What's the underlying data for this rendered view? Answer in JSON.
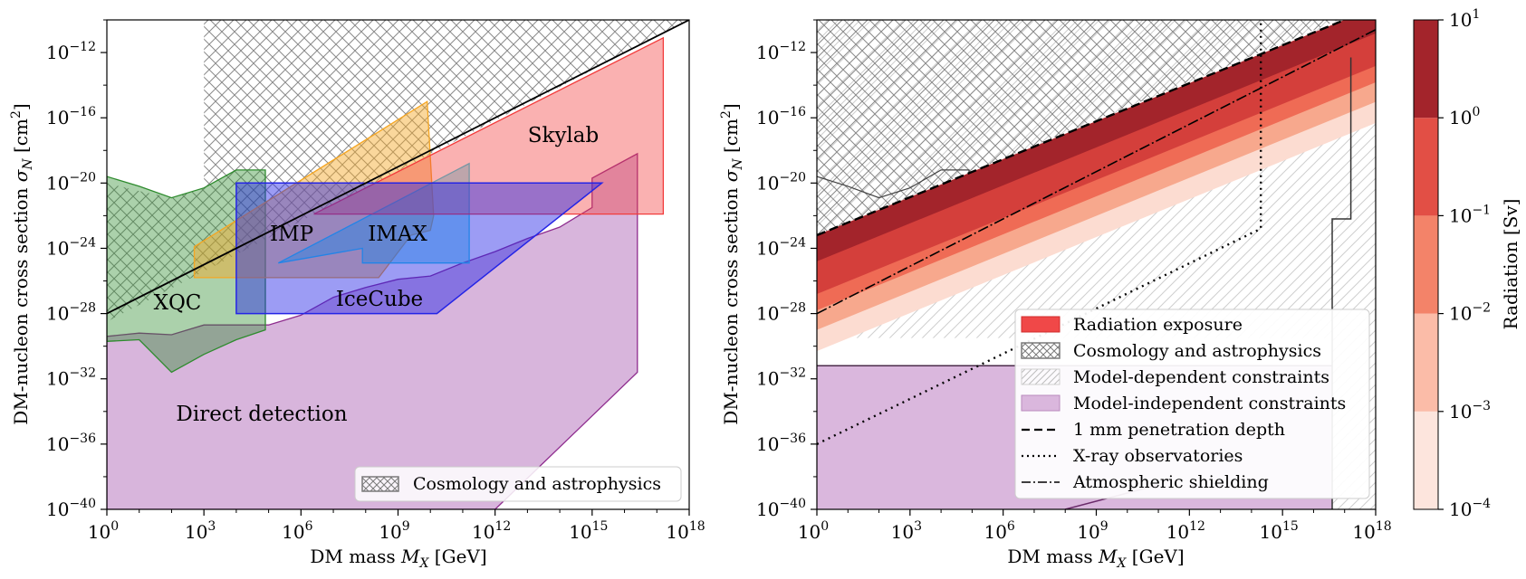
{
  "colors": {
    "cosmo_hatch": "#7a7a7a",
    "direct": "#b879c0",
    "xqc": "#2e8b2e",
    "imp": "#f5a623",
    "imax": "#22d3e8",
    "skylab": "#f23b3b",
    "icecube": "#2424e6",
    "dark_red": "#a3242b",
    "sky_red": "#f04848"
  },
  "chart_data": [
    {
      "type": "area",
      "xlabel": "DM mass M_X [GeV]",
      "ylabel": "DM-nucleon cross section σ_N [cm²]",
      "xscale": "log10",
      "yscale": "log10",
      "xlim": [
        0,
        18
      ],
      "ylim": [
        -40,
        -10
      ],
      "x_ticks": [
        0,
        3,
        6,
        9,
        12,
        15,
        18
      ],
      "y_ticks": [
        -40,
        -36,
        -32,
        -28,
        -24,
        -20,
        -16,
        -12
      ],
      "grid": false,
      "legend": {
        "position": "bottom-right",
        "entries": [
          "Cosmology and astrophysics"
        ]
      },
      "labels": [
        "Skylab",
        "IMP",
        "IMAX",
        "XQC",
        "IceCube",
        "Direct detection"
      ],
      "regions": [
        {
          "id": "cosmology",
          "hatch": true,
          "points": [
            [
              0,
              -10
            ],
            [
              18,
              -10
            ],
            [
              0,
              -28.5
            ],
            [
              0,
              -20
            ],
            [
              1,
              -20.5
            ],
            [
              2,
              -20.9
            ],
            [
              3,
              -20.3
            ],
            [
              3,
              -10
            ]
          ]
        },
        {
          "id": "direct_detection",
          "points": [
            [
              0,
              -40
            ],
            [
              0,
              -29.4
            ],
            [
              1,
              -29.2
            ],
            [
              2,
              -29.3
            ],
            [
              3,
              -28.7
            ],
            [
              4,
              -28.7
            ],
            [
              5,
              -28.7
            ],
            [
              6,
              -28.1
            ],
            [
              7,
              -27.0
            ],
            [
              8,
              -26.4
            ],
            [
              9,
              -25.9
            ],
            [
              10,
              -25.7
            ],
            [
              11,
              -24.9
            ],
            [
              12,
              -24.2
            ],
            [
              13,
              -23.4
            ],
            [
              14,
              -22.7
            ],
            [
              15,
              -21.5
            ],
            [
              15,
              -19.7
            ],
            [
              16.4,
              -18.2
            ],
            [
              16.4,
              -31.6
            ],
            [
              12,
              -40
            ]
          ]
        },
        {
          "id": "xqc",
          "points": [
            [
              0,
              -19.6
            ],
            [
              1,
              -20.2
            ],
            [
              2,
              -20.9
            ],
            [
              3,
              -20.3
            ],
            [
              4,
              -19.2
            ],
            [
              4.9,
              -19.2
            ],
            [
              4.9,
              -29.0
            ],
            [
              4,
              -29.6
            ],
            [
              3,
              -30.5
            ],
            [
              2,
              -31.6
            ],
            [
              1,
              -29.6
            ],
            [
              0,
              -29.7
            ]
          ]
        },
        {
          "id": "imp",
          "points": [
            [
              2.7,
              -23.9
            ],
            [
              9.9,
              -15.0
            ],
            [
              10.1,
              -22.0
            ],
            [
              10.0,
              -22.9
            ],
            [
              9.4,
              -23.2
            ],
            [
              8.4,
              -25.8
            ],
            [
              2.7,
              -25.8
            ]
          ]
        },
        {
          "id": "imax",
          "points": [
            [
              5.3,
              -24.9
            ],
            [
              11.2,
              -18.8
            ],
            [
              11.2,
              -24.9
            ],
            [
              7.9,
              -24.9
            ],
            [
              7.9,
              -24.0
            ]
          ]
        },
        {
          "id": "skylab",
          "points": [
            [
              6.4,
              -21.9
            ],
            [
              17.2,
              -11.1
            ],
            [
              17.2,
              -21.9
            ]
          ]
        },
        {
          "id": "icecube",
          "points": [
            [
              4,
              -20.0
            ],
            [
              15.3,
              -20.0
            ],
            [
              10.2,
              -28.0
            ],
            [
              4,
              -28.0
            ]
          ]
        },
        {
          "id": "black_line",
          "points": [
            [
              0,
              -28.0
            ],
            [
              18,
              -10
            ]
          ]
        }
      ]
    },
    {
      "type": "area",
      "xlabel": "DM mass M_X [GeV]",
      "ylabel": "DM-nucleon cross section σ_N [cm²]",
      "xscale": "log10",
      "yscale": "log10",
      "xlim": [
        0,
        18
      ],
      "ylim": [
        -40,
        -10
      ],
      "x_ticks": [
        0,
        3,
        6,
        9,
        12,
        15,
        18
      ],
      "y_ticks": [
        -40,
        -36,
        -32,
        -28,
        -24,
        -20,
        -16,
        -12
      ],
      "grid": false,
      "legend": {
        "position": "lower-right",
        "entries": [
          "Radiation exposure",
          "Cosmology and astrophysics",
          "Model-dependent constraints",
          "Model-independent constraints",
          "1 mm penetration depth",
          "X-ray observatories",
          "Atmospheric shielding"
        ]
      },
      "radiation_bands_Sv": [
        {
          "level": "1e1",
          "offset": 0,
          "color": "#a3242b"
        },
        {
          "level": "1e0",
          "offset": -2.0,
          "color": "#d43f3b"
        },
        {
          "level": "1e-1",
          "offset": -3.0,
          "color": "#ef6b55"
        },
        {
          "level": "1e-2",
          "offset": -4.2,
          "color": "#f7a88d"
        },
        {
          "level": "1e-3",
          "offset": -5.5,
          "color": "#fcdcd1"
        }
      ],
      "lines": {
        "penetration_1mm": [
          [
            0,
            -23.2
          ],
          [
            17,
            -10
          ]
        ],
        "atmospheric_shielding": [
          [
            0,
            -28.0
          ],
          [
            18,
            -10.6
          ]
        ],
        "xray": [
          [
            0,
            -36.0
          ],
          [
            14.3,
            -22.8
          ],
          [
            14.3,
            -10
          ]
        ],
        "model_dependent_boundary": [
          [
            16.6,
            -40
          ],
          [
            16.6,
            -22.2
          ],
          [
            17.2,
            -22.2
          ],
          [
            17.2,
            -12.3
          ]
        ]
      },
      "colorbar": {
        "label": "Radiation [Sv]",
        "ticks": [
          "-4",
          "-3",
          "-2",
          "-1",
          "0",
          "1"
        ],
        "colors": [
          "#fde5dd",
          "#fbbca8",
          "#f38369",
          "#e24f45",
          "#a3242b"
        ]
      }
    }
  ],
  "texts": {
    "x_base": "10",
    "xlabel_pre": "DM mass ",
    "xlabel_var": "M",
    "xlabel_sub": "X",
    "xlabel_post": " [GeV]",
    "ylabel_pre": "DM-nucleon cross section ",
    "ylabel_var": "σ",
    "ylabel_sub": "N",
    "ylabel_post": " [cm",
    "ylabel_sup": "2",
    "ylabel_end": "]",
    "skylab": "Skylab",
    "imp": "IMP",
    "imax": "IMAX",
    "xqc": "XQC",
    "icecube": "IceCube",
    "direct": "Direct detection",
    "legend1_cosmo": "Cosmology and astrophysics",
    "legend2": {
      "radiation": "Radiation exposure",
      "cosmo": "Cosmology and astrophysics",
      "model_dep": "Model-dependent constraints",
      "model_indep": "Model-independent constraints",
      "penetration": "1 mm penetration depth",
      "xray": "X-ray observatories",
      "atmos": "Atmospheric shielding"
    },
    "colorbar_label": "Radiation [Sv]"
  }
}
